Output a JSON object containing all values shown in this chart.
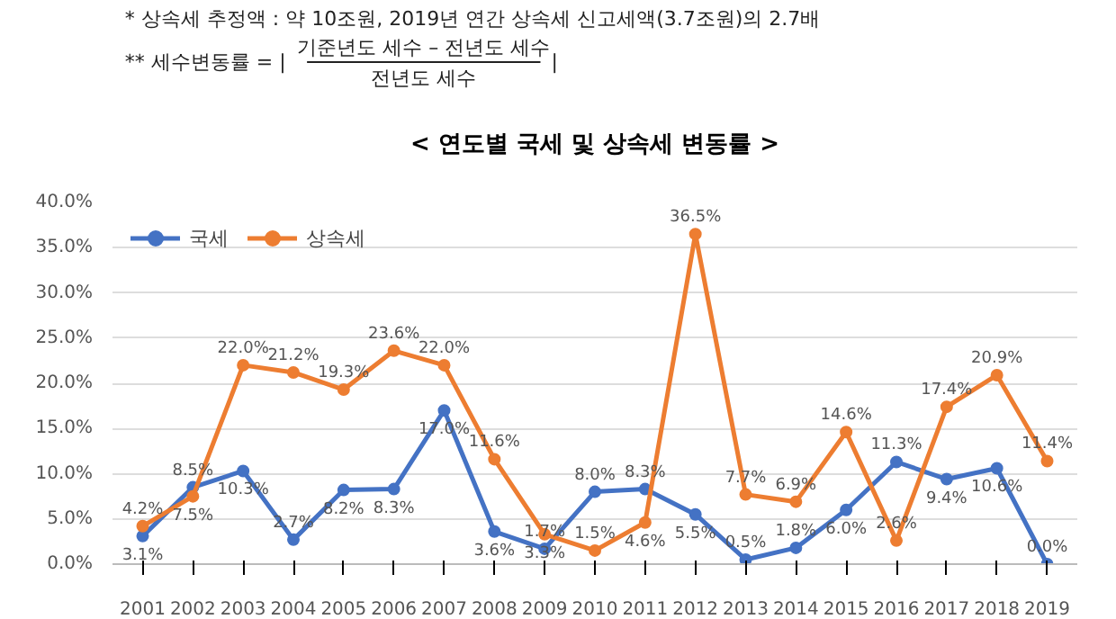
{
  "chart_data": {
    "type": "line",
    "title": "< 연도별 국세 및 상속세 변동률 >",
    "annotations": [
      "* 상속세 추정액 : 약 10조원, 2019년 연간 상속세 신고세액(3.7조원)의 2.7배",
      "** 세수변동률 = |",
      "기준년도 세수 – 전년도 세수",
      "전년도 세수",
      "|"
    ],
    "categories": [
      "2001",
      "2002",
      "2003",
      "2004",
      "2005",
      "2006",
      "2007",
      "2008",
      "2009",
      "2010",
      "2011",
      "2012",
      "2013",
      "2014",
      "2015",
      "2016",
      "2017",
      "2018",
      "2019"
    ],
    "series": [
      {
        "name": "국세",
        "color": "#4472c4",
        "values": [
          3.1,
          8.5,
          10.3,
          2.7,
          8.2,
          8.3,
          17.0,
          3.6,
          1.7,
          8.0,
          8.3,
          5.5,
          0.5,
          1.8,
          6.0,
          11.3,
          9.4,
          10.6,
          0.0
        ],
        "value_labels": [
          "3.1%",
          "8.5%",
          "10.3%",
          "2.7%",
          "8.2%",
          "8.3%",
          "17.0%",
          "3.6%",
          "1.7%",
          "8.0%",
          "8.3%",
          "5.5%",
          "0.5%",
          "1.8%",
          "6.0%",
          "11.3%",
          "9.4%",
          "10.6%",
          "0.0%"
        ]
      },
      {
        "name": "상속세",
        "color": "#ed7d31",
        "values": [
          4.2,
          7.5,
          22.0,
          21.2,
          19.3,
          23.6,
          22.0,
          11.6,
          3.3,
          1.5,
          4.6,
          36.5,
          7.7,
          6.9,
          14.6,
          2.6,
          17.4,
          20.9,
          11.4
        ],
        "value_labels": [
          "4.2%",
          "7.5%",
          "22.0%",
          "21.2%",
          "19.3%",
          "23.6%",
          "22.0%",
          "11.6%",
          "3.3%",
          "1.5%",
          "4.6%",
          "36.5%",
          "7.7%",
          "6.9%",
          "14.6%",
          "2.6%",
          "17.4%",
          "20.9%",
          "11.4%"
        ]
      }
    ],
    "ylim": [
      0,
      40
    ],
    "yticks": [
      {
        "value": 0,
        "label": "0.0%"
      },
      {
        "value": 5,
        "label": "5.0%"
      },
      {
        "value": 10,
        "label": "10.0%"
      },
      {
        "value": 15,
        "label": "15.0%"
      },
      {
        "value": 20,
        "label": "20.0%"
      },
      {
        "value": 25,
        "label": "25.0%"
      },
      {
        "value": 30,
        "label": "30.0%"
      },
      {
        "value": 35,
        "label": "35.0%"
      },
      {
        "value": 40,
        "label": "40.0%"
      }
    ],
    "grid": "y",
    "legend": "top left",
    "marker": "circle",
    "line_style": "solid"
  }
}
